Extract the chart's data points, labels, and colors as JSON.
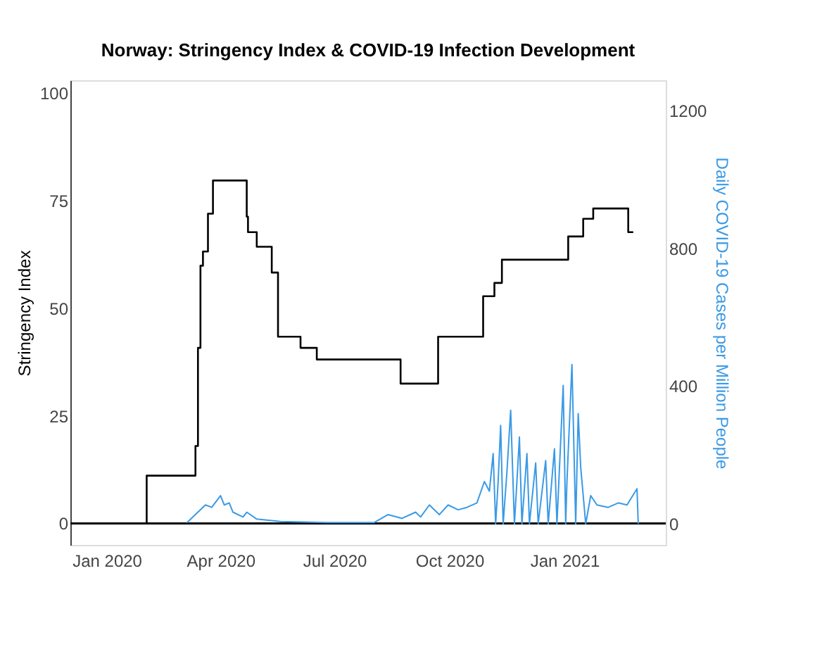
{
  "chart_data": {
    "type": "line",
    "title": "Norway: Stringency Index & COVID-19 Infection Development",
    "ylabel": "Stringency Index",
    "y2label": "Daily COVID-19 Cases per Million People",
    "xlim": [
      "2019-12-03",
      "2021-03-23"
    ],
    "xticks": [
      {
        "value": "2020-01-01",
        "label": "Jan 2020"
      },
      {
        "value": "2020-04-01",
        "label": "Apr 2020"
      },
      {
        "value": "2020-07-01",
        "label": "Jul 2020"
      },
      {
        "value": "2020-10-01",
        "label": "Oct 2020"
      },
      {
        "value": "2021-01-01",
        "label": "Jan 2021"
      }
    ],
    "ylim": [
      -5,
      103
    ],
    "yticks": [
      0,
      25,
      50,
      75,
      100
    ],
    "y2lim": [
      -61,
      1288
    ],
    "y2ticks": [
      0,
      400,
      800,
      1200
    ],
    "grid": false,
    "marker": "none",
    "line_style": "solid",
    "ref_lines": [
      {
        "axis": "y",
        "value": 0,
        "color": "#000000"
      }
    ],
    "series": [
      {
        "type": "step",
        "color": "#000000",
        "axis": "y",
        "x": [
          "2020-02-01",
          "2020-02-02",
          "2020-03-12",
          "2020-03-14",
          "2020-03-16",
          "2020-03-18",
          "2020-03-22",
          "2020-03-26",
          "2020-03-27",
          "2020-04-22",
          "2020-04-23",
          "2020-04-30",
          "2020-05-12",
          "2020-05-17",
          "2020-06-04",
          "2020-06-17",
          "2020-08-23",
          "2020-09-22",
          "2020-10-28",
          "2020-11-06",
          "2020-11-12",
          "2021-01-04",
          "2021-01-16",
          "2021-01-24",
          "2021-01-29",
          "2021-02-21",
          "2021-02-25"
        ],
        "values": [
          0,
          11.1,
          18,
          40.8,
          59.9,
          63.2,
          72,
          79.7,
          79.7,
          71.3,
          67.7,
          64.3,
          58.3,
          43.4,
          40.8,
          38.1,
          32.5,
          43.4,
          52.8,
          55.9,
          61.3,
          66.7,
          70.8,
          73.2,
          73.2,
          67.7,
          67.7
        ]
      },
      {
        "type": "line",
        "color": "#3a9ae6",
        "axis": "y2",
        "x": [
          "2020-03-05",
          "2020-03-16",
          "2020-03-20",
          "2020-03-25",
          "2020-04-01",
          "2020-04-04",
          "2020-04-08",
          "2020-04-11",
          "2020-04-19",
          "2020-04-22",
          "2020-04-30",
          "2020-05-19",
          "2020-06-25",
          "2020-08-02",
          "2020-08-13",
          "2020-08-24",
          "2020-09-04",
          "2020-09-08",
          "2020-09-15",
          "2020-09-23",
          "2020-09-30",
          "2020-10-08",
          "2020-10-15",
          "2020-10-23",
          "2020-10-29",
          "2020-11-02",
          "2020-11-05",
          "2020-11-07",
          "2020-11-09",
          "2020-11-11",
          "2020-11-13",
          "2020-11-16",
          "2020-11-19",
          "2020-11-22",
          "2020-11-24",
          "2020-11-26",
          "2020-11-28",
          "2020-12-02",
          "2020-12-04",
          "2020-12-09",
          "2020-12-11",
          "2020-12-17",
          "2020-12-19",
          "2020-12-24",
          "2020-12-26",
          "2020-12-31",
          "2021-01-02",
          "2021-01-03",
          "2021-01-07",
          "2021-01-10",
          "2021-01-12",
          "2021-01-14",
          "2021-01-18",
          "2021-01-22",
          "2021-01-27",
          "2021-02-05",
          "2021-02-13",
          "2021-02-20",
          "2021-02-28",
          "2021-03-01"
        ],
        "values": [
          3,
          41,
          55,
          48,
          82,
          55,
          61,
          34,
          20,
          34,
          14,
          7,
          4,
          4,
          27,
          16,
          34,
          20,
          55,
          27,
          55,
          41,
          48,
          61,
          123,
          95,
          204,
          0,
          123,
          286,
          0,
          150,
          330,
          0,
          123,
          252,
          0,
          204,
          0,
          177,
          0,
          184,
          0,
          218,
          0,
          402,
          0,
          123,
          463,
          0,
          320,
          164,
          0,
          82,
          55,
          48,
          61,
          55,
          102,
          0
        ]
      }
    ]
  }
}
